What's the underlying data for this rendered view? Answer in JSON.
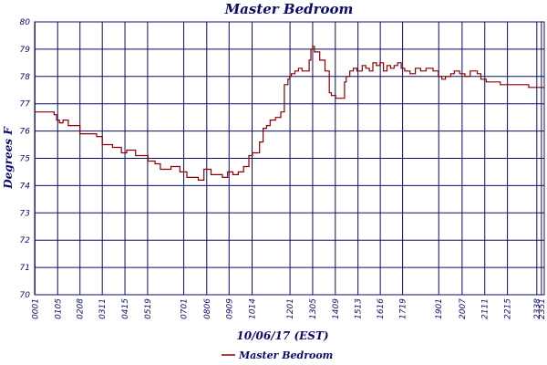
{
  "chart_data": {
    "type": "line",
    "title": "Master Bedroom",
    "ylabel": "Degrees F",
    "xlabel": "10/06/17 (EST)",
    "ylim": [
      70,
      80
    ],
    "xlim": [
      0,
      1439
    ],
    "yticks": [
      70,
      71,
      72,
      73,
      74,
      75,
      76,
      77,
      78,
      79,
      80
    ],
    "xticks": [
      {
        "label": "0001",
        "t": 1
      },
      {
        "label": "0105",
        "t": 65
      },
      {
        "label": "0208",
        "t": 128
      },
      {
        "label": "0311",
        "t": 191
      },
      {
        "label": "0415",
        "t": 255
      },
      {
        "label": "0519",
        "t": 319
      },
      {
        "label": "0701",
        "t": 421
      },
      {
        "label": "0806",
        "t": 486
      },
      {
        "label": "0909",
        "t": 549
      },
      {
        "label": "1014",
        "t": 614
      },
      {
        "label": "1201",
        "t": 721
      },
      {
        "label": "1305",
        "t": 785
      },
      {
        "label": "1409",
        "t": 849
      },
      {
        "label": "1513",
        "t": 913
      },
      {
        "label": "1616",
        "t": 976
      },
      {
        "label": "1719",
        "t": 1039
      },
      {
        "label": "1901",
        "t": 1141
      },
      {
        "label": "2007",
        "t": 1207
      },
      {
        "label": "2111",
        "t": 1271
      },
      {
        "label": "2215",
        "t": 1335
      },
      {
        "label": "2338",
        "t": 1418
      },
      {
        "label": "2351",
        "t": 1431
      }
    ],
    "grid": true,
    "legend": {
      "position": "bottom",
      "entries": [
        "Master Bedroom"
      ]
    },
    "colors": {
      "series": "#8b0000",
      "text": "#0b0b6e",
      "grid": "#0b0b6e"
    },
    "series": [
      {
        "name": "Master Bedroom",
        "x_unit": "minutes since 0000",
        "x": [
          0,
          40,
          55,
          62,
          70,
          80,
          95,
          110,
          128,
          165,
          175,
          191,
          220,
          245,
          260,
          275,
          285,
          300,
          320,
          340,
          355,
          370,
          385,
          400,
          410,
          430,
          450,
          458,
          462,
          478,
          498,
          520,
          530,
          545,
          560,
          575,
          590,
          605,
          615,
          635,
          645,
          655,
          665,
          680,
          695,
          705,
          715,
          720,
          725,
          735,
          745,
          755,
          765,
          775,
          780,
          785,
          790,
          805,
          820,
          832,
          838,
          850,
          870,
          875,
          880,
          890,
          900,
          910,
          925,
          935,
          945,
          955,
          965,
          975,
          985,
          995,
          1005,
          1015,
          1025,
          1035,
          1045,
          1060,
          1075,
          1090,
          1105,
          1125,
          1140,
          1150,
          1160,
          1175,
          1185,
          1200,
          1215,
          1230,
          1250,
          1260,
          1275,
          1300,
          1315,
          1335,
          1380,
          1395,
          1430,
          1439
        ],
        "values": [
          76.7,
          76.7,
          76.6,
          76.4,
          76.3,
          76.4,
          76.2,
          76.2,
          75.9,
          75.9,
          75.8,
          75.5,
          75.4,
          75.2,
          75.3,
          75.3,
          75.1,
          75.1,
          74.9,
          74.8,
          74.6,
          74.6,
          74.7,
          74.7,
          74.5,
          74.3,
          74.3,
          74.3,
          74.2,
          74.6,
          74.4,
          74.4,
          74.3,
          74.5,
          74.4,
          74.5,
          74.7,
          75.1,
          75.2,
          75.6,
          76.1,
          76.2,
          76.4,
          76.5,
          76.7,
          77.7,
          77.9,
          78.0,
          78.1,
          78.2,
          78.3,
          78.2,
          78.2,
          78.6,
          79.0,
          79.1,
          78.9,
          78.6,
          78.2,
          77.4,
          77.3,
          77.2,
          77.2,
          77.8,
          78.0,
          78.2,
          78.3,
          78.2,
          78.4,
          78.3,
          78.2,
          78.5,
          78.4,
          78.5,
          78.2,
          78.4,
          78.3,
          78.4,
          78.5,
          78.3,
          78.2,
          78.1,
          78.3,
          78.2,
          78.3,
          78.2,
          78.0,
          77.9,
          78.0,
          78.1,
          78.2,
          78.1,
          78.0,
          78.2,
          78.1,
          77.9,
          77.8,
          77.8,
          77.7,
          77.7,
          77.7,
          77.6,
          77.6,
          77.6
        ]
      }
    ]
  }
}
